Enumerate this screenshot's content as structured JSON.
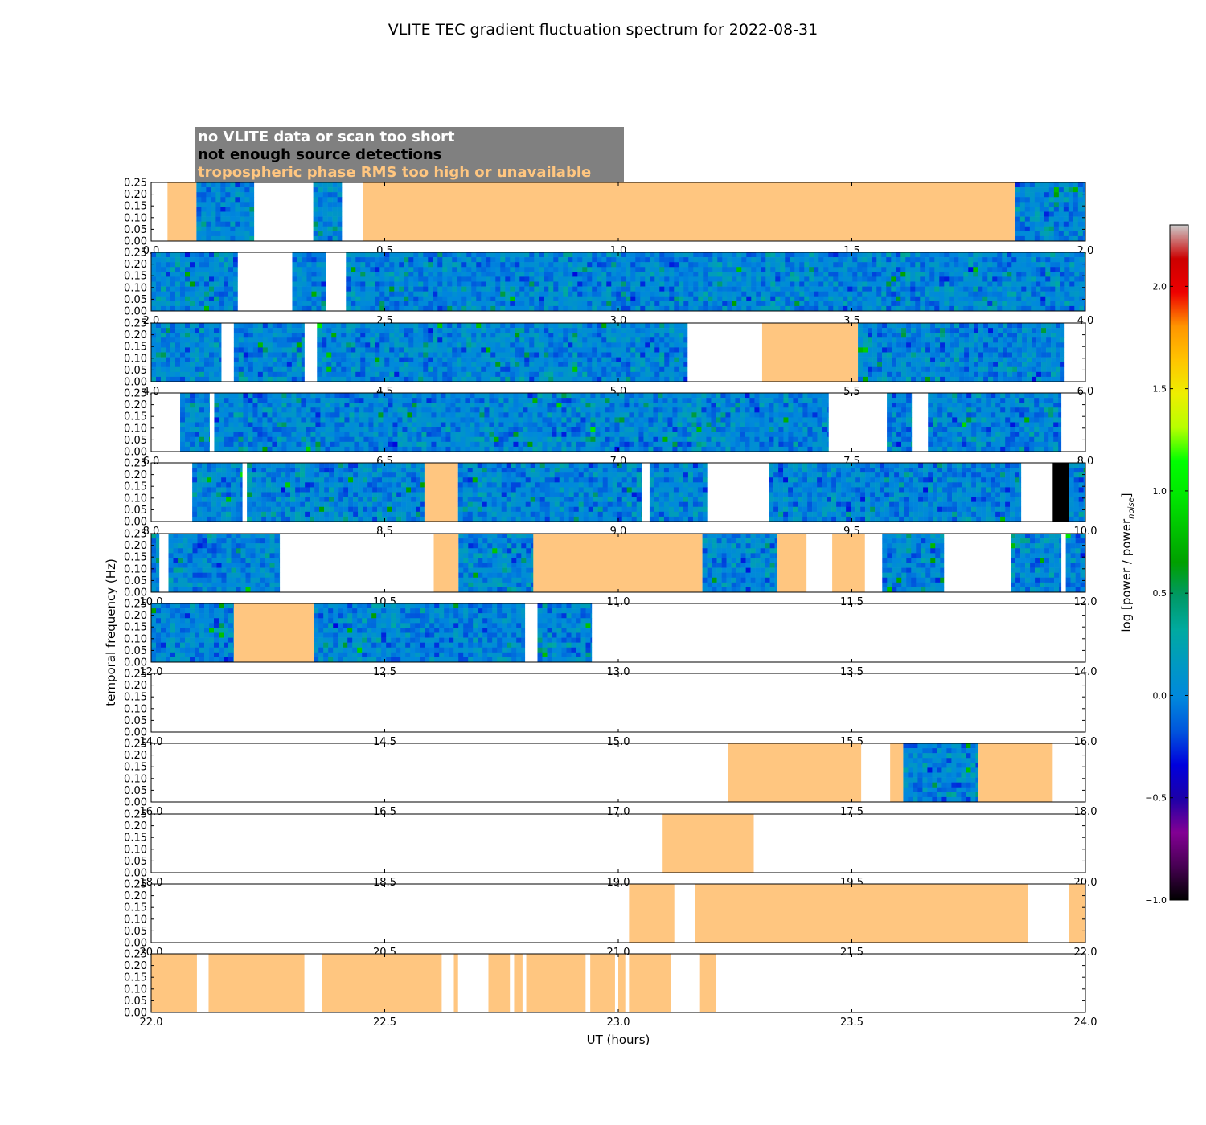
{
  "chart_data": {
    "type": "heatmap",
    "title": "VLITE TEC gradient fluctuation spectrum for 2022-08-31",
    "xlabel": "UT (hours)",
    "ylabel": "temporal frequency (Hz)",
    "ylim": [
      0,
      0.25
    ],
    "yticks": [
      "0.00",
      "0.05",
      "0.10",
      "0.15",
      "0.20",
      "0.25"
    ],
    "colorbar": {
      "label_prefix": "log [power / power",
      "label_subscript": "noise",
      "label_suffix": "]",
      "range": [
        -1.0,
        2.3
      ],
      "ticks": [
        "−1.0",
        "−0.5",
        "0.0",
        "0.5",
        "1.0",
        "1.5",
        "2.0"
      ],
      "tick_values": [
        -1.0,
        -0.5,
        0.0,
        0.5,
        1.0,
        1.5,
        2.0
      ],
      "colormap": "nipy_spectral"
    },
    "legend": [
      {
        "key": "nodata",
        "label": "no VLITE data or scan too short",
        "text_color": "#ffffff",
        "fill": "#ffffff"
      },
      {
        "key": "nodet",
        "label": "not enough source detections",
        "text_color": "#000000",
        "fill": "#000000"
      },
      {
        "key": "trop",
        "label": "tropospheric phase RMS too high or unavailable",
        "text_color": "#ffc680",
        "fill": "#ffc680"
      }
    ],
    "colors": {
      "trop": "#ffc680",
      "nodet": "#000000",
      "legend_bg": "#808080"
    },
    "segment_types": [
      "spectrum",
      "trop",
      "nodet"
    ],
    "panels": [
      {
        "range": [
          0,
          2
        ],
        "xticks": [
          "0.0",
          "0.5",
          "1.0",
          "1.5",
          "2.0"
        ],
        "segments": [
          [
            0.035,
            0.097,
            "trop"
          ],
          [
            0.097,
            0.22,
            "spectrum"
          ],
          [
            0.347,
            0.408,
            "spectrum"
          ],
          [
            0.453,
            1.85,
            "trop"
          ],
          [
            1.85,
            2.0,
            "spectrum"
          ]
        ]
      },
      {
        "range": [
          2,
          4
        ],
        "xticks": [
          "2.0",
          "2.5",
          "3.0",
          "3.5",
          "4.0"
        ],
        "segments": [
          [
            2.0,
            2.185,
            "spectrum"
          ],
          [
            2.302,
            2.373,
            "spectrum"
          ],
          [
            2.417,
            4.0,
            "spectrum"
          ]
        ]
      },
      {
        "range": [
          4,
          6
        ],
        "xticks": [
          "4.0",
          "4.5",
          "5.0",
          "5.5",
          "6.0"
        ],
        "segments": [
          [
            4.0,
            4.15,
            "spectrum"
          ],
          [
            4.177,
            4.328,
            "spectrum"
          ],
          [
            4.355,
            5.148,
            "spectrum"
          ],
          [
            5.308,
            5.513,
            "trop"
          ],
          [
            5.513,
            5.955,
            "spectrum"
          ]
        ]
      },
      {
        "range": [
          6,
          8
        ],
        "xticks": [
          "6.0",
          "6.5",
          "7.0",
          "7.5",
          "8.0"
        ],
        "segments": [
          [
            6.062,
            6.125,
            "spectrum"
          ],
          [
            6.135,
            7.45,
            "spectrum"
          ],
          [
            7.575,
            7.628,
            "spectrum"
          ],
          [
            7.663,
            7.948,
            "spectrum"
          ]
        ]
      },
      {
        "range": [
          8,
          10
        ],
        "xticks": [
          "8.0",
          "8.5",
          "9.0",
          "9.5",
          "10.0"
        ],
        "segments": [
          [
            8.088,
            8.195,
            "spectrum"
          ],
          [
            8.205,
            8.585,
            "spectrum"
          ],
          [
            8.585,
            8.657,
            "trop"
          ],
          [
            8.657,
            9.05,
            "spectrum"
          ],
          [
            9.067,
            9.19,
            "spectrum"
          ],
          [
            9.322,
            9.862,
            "spectrum"
          ],
          [
            9.93,
            9.965,
            "nodet"
          ],
          [
            9.965,
            10.0,
            "spectrum"
          ]
        ]
      },
      {
        "range": [
          10,
          12
        ],
        "xticks": [
          "10.0",
          "10.5",
          "11.0",
          "11.5",
          "12.0"
        ],
        "segments": [
          [
            10.0,
            10.017,
            "spectrum"
          ],
          [
            10.037,
            10.275,
            "spectrum"
          ],
          [
            10.605,
            10.658,
            "trop"
          ],
          [
            10.658,
            10.818,
            "spectrum"
          ],
          [
            10.818,
            11.18,
            "trop"
          ],
          [
            11.18,
            11.34,
            "spectrum"
          ],
          [
            11.34,
            11.403,
            "trop"
          ],
          [
            11.458,
            11.528,
            "trop"
          ],
          [
            11.565,
            11.697,
            "spectrum"
          ],
          [
            11.84,
            11.948,
            "spectrum"
          ],
          [
            11.958,
            12.0,
            "spectrum"
          ]
        ]
      },
      {
        "range": [
          12,
          14
        ],
        "xticks": [
          "12.0",
          "12.5",
          "13.0",
          "13.5",
          "14.0"
        ],
        "segments": [
          [
            12.0,
            12.177,
            "spectrum"
          ],
          [
            12.177,
            12.348,
            "trop"
          ],
          [
            12.348,
            12.8,
            "spectrum"
          ],
          [
            12.827,
            12.943,
            "spectrum"
          ]
        ]
      },
      {
        "range": [
          14,
          16
        ],
        "xticks": [
          "14.0",
          "14.5",
          "15.0",
          "15.5",
          "16.0"
        ],
        "segments": []
      },
      {
        "range": [
          16,
          18
        ],
        "xticks": [
          "16.0",
          "16.5",
          "17.0",
          "17.5",
          "18.0"
        ],
        "segments": [
          [
            17.235,
            17.52,
            "trop"
          ],
          [
            17.582,
            17.61,
            "trop"
          ],
          [
            17.61,
            17.77,
            "spectrum"
          ],
          [
            17.77,
            17.93,
            "trop"
          ]
        ]
      },
      {
        "range": [
          18,
          20
        ],
        "xticks": [
          "18.0",
          "18.5",
          "19.0",
          "19.5",
          "20.0"
        ],
        "segments": [
          [
            19.095,
            19.29,
            "trop"
          ]
        ]
      },
      {
        "range": [
          20,
          22
        ],
        "xticks": [
          "20.0",
          "20.5",
          "21.0",
          "21.5",
          "22.0"
        ],
        "segments": [
          [
            21.023,
            21.12,
            "trop"
          ],
          [
            21.165,
            21.877,
            "trop"
          ],
          [
            21.965,
            22.0,
            "trop"
          ]
        ]
      },
      {
        "range": [
          22,
          24
        ],
        "xticks": [
          "22.0",
          "22.5",
          "23.0",
          "23.5",
          "24.0"
        ],
        "segments": [
          [
            22.0,
            22.098,
            "trop"
          ],
          [
            22.123,
            22.328,
            "trop"
          ],
          [
            22.365,
            22.622,
            "trop"
          ],
          [
            22.648,
            22.657,
            "trop"
          ],
          [
            22.722,
            22.768,
            "trop"
          ],
          [
            22.777,
            22.795,
            "trop"
          ],
          [
            22.803,
            22.93,
            "trop"
          ],
          [
            22.94,
            22.993,
            "trop"
          ],
          [
            23.0,
            23.015,
            "trop"
          ],
          [
            23.023,
            23.113,
            "trop"
          ],
          [
            23.175,
            23.21,
            "trop"
          ]
        ]
      }
    ]
  }
}
